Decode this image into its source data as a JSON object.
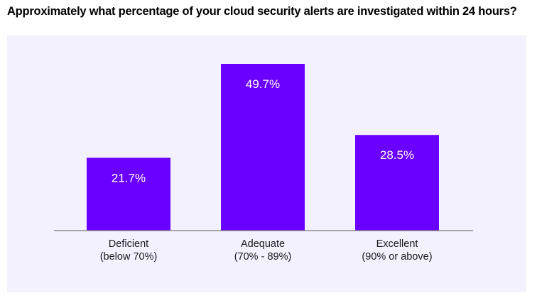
{
  "chart_data": {
    "type": "bar",
    "title": "Approximately what percentage of your cloud security alerts are investigated within 24 hours?",
    "categories": [
      [
        "Deficient",
        "(below 70%)"
      ],
      [
        "Adequate",
        "(70% - 89%)"
      ],
      [
        "Excellent",
        "(90% or above)"
      ]
    ],
    "values": [
      21.7,
      49.7,
      28.5
    ],
    "value_labels": [
      "21.7%",
      "49.7%",
      "28.5%"
    ],
    "ylim": [
      0,
      55
    ],
    "grid": false,
    "legend": "none",
    "colors": {
      "bar": "#6a00ff",
      "panel_background": "#f3f1fd",
      "baseline": "#7a7a7a",
      "bar_label_text": "#ffffff"
    }
  }
}
